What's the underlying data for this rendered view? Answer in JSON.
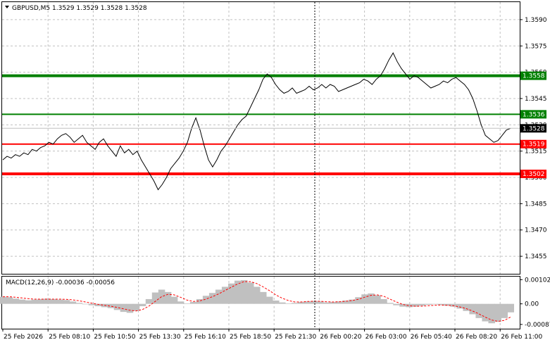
{
  "header": {
    "title": "GBPUSD,M5  1.3529 1.3529 1.3528 1.3528",
    "menu_icon": "triangle-down-icon"
  },
  "macd": {
    "label": "MACD(12,26,9) -0.00036 -0.00056",
    "hist_color": "#c0c0c0",
    "signal_color": "#ff0000"
  },
  "colors": {
    "support": "#ff0000",
    "resistance": "#008000",
    "price_line": "#000000",
    "grid": "#c0c0c0",
    "current_price_bg": "#000000",
    "vertical_marker": "#000000"
  },
  "chart_data": [
    {
      "type": "line",
      "name": "price",
      "title": "GBPUSD,M5",
      "ylim": [
        1.3445,
        1.36
      ],
      "y_ticks": [
        "1.3590",
        "1.3575",
        "1.3560",
        "1.3545",
        "1.3530",
        "1.3515",
        "1.3500",
        "1.3485",
        "1.3470",
        "1.3455"
      ],
      "x_ticks": [
        "25 Feb 2026",
        "25 Feb 08:10",
        "25 Feb 10:50",
        "25 Feb 13:30",
        "25 Feb 16:10",
        "25 Feb 18:50",
        "25 Feb 21:30",
        "26 Feb 00:20",
        "26 Feb 03:00",
        "26 Feb 05:40",
        "26 Feb 08:20",
        "26 Feb 11:00"
      ],
      "levels": [
        {
          "label": "1.3558",
          "value": 1.3558,
          "kind": "resistance",
          "thick": true
        },
        {
          "label": "1.3536",
          "value": 1.3536,
          "kind": "resistance",
          "thick": false
        },
        {
          "label": "1.3519",
          "value": 1.3519,
          "kind": "support",
          "thick": false
        },
        {
          "label": "1.3502",
          "value": 1.3502,
          "kind": "support",
          "thick": true
        }
      ],
      "current_price": {
        "label": "1.3528",
        "value": 1.3528
      },
      "grid": true,
      "series": [
        {
          "values": [
            1.351,
            1.3512,
            1.3511,
            1.3513,
            1.3512,
            1.3514,
            1.3513,
            1.3516,
            1.3515,
            1.3517,
            1.3518,
            1.352,
            1.3519,
            1.3522,
            1.3524,
            1.3525,
            1.3523,
            1.352,
            1.3522,
            1.3524,
            1.352,
            1.3518,
            1.3516,
            1.352,
            1.3522,
            1.3518,
            1.3515,
            1.3512,
            1.3518,
            1.3514,
            1.3516,
            1.3513,
            1.3515,
            1.351,
            1.3506,
            1.3502,
            1.3498,
            1.3493,
            1.3496,
            1.35,
            1.3505,
            1.3508,
            1.3511,
            1.3515,
            1.352,
            1.3528,
            1.3534,
            1.3527,
            1.3518,
            1.351,
            1.3506,
            1.351,
            1.3515,
            1.3518,
            1.3522,
            1.3526,
            1.353,
            1.3533,
            1.3535,
            1.354,
            1.3545,
            1.355,
            1.3556,
            1.3559,
            1.3557,
            1.3553,
            1.355,
            1.3548,
            1.3549,
            1.3551,
            1.3548,
            1.3549,
            1.355,
            1.3552,
            1.355,
            1.3551,
            1.3553,
            1.3551,
            1.3553,
            1.3552,
            1.3549,
            1.355,
            1.3551,
            1.3552,
            1.3553,
            1.3554,
            1.3556,
            1.3555,
            1.3553,
            1.3556,
            1.3558,
            1.3562,
            1.3567,
            1.3571,
            1.3566,
            1.3562,
            1.3559,
            1.3556,
            1.3558,
            1.3557,
            1.3555,
            1.3553,
            1.3551,
            1.3552,
            1.3553,
            1.3555,
            1.3554,
            1.3556,
            1.3557,
            1.3555,
            1.3553,
            1.355,
            1.3545,
            1.3538,
            1.353,
            1.3524,
            1.3522,
            1.352,
            1.3521,
            1.3524,
            1.3527,
            1.3528
          ]
        }
      ]
    },
    {
      "type": "bar",
      "name": "MACD",
      "title": "MACD(12,26,9) -0.00036 -0.00056",
      "ylim": [
        -0.00105,
        0.00115
      ],
      "y_ticks": [
        "0.00102",
        "0.00",
        "-0.00087"
      ],
      "series": [
        {
          "name": "MACD",
          "values": [
            0.0003,
            0.00028,
            0.00022,
            0.00018,
            0.00015,
            0.00018,
            0.0002,
            0.00022,
            0.0002,
            0.00018,
            0.00016,
            0.0001,
            4e-05,
            -2e-05,
            -6e-05,
            -0.0001,
            -0.00014,
            -0.00018,
            -0.00026,
            -0.00034,
            -0.00038,
            -0.0003,
            -0.0001,
            0.0002,
            0.00048,
            0.0006,
            0.0005,
            0.0003,
            0.0001,
            2e-05,
            8e-05,
            0.0002,
            0.00034,
            0.00046,
            0.0006,
            0.00072,
            0.00086,
            0.00098,
            0.001,
            0.0009,
            0.00072,
            0.0005,
            0.0003,
            0.00014,
            6e-05,
            2e-05,
            4e-05,
            8e-05,
            0.0001,
            0.00012,
            0.0001,
            6e-05,
            8e-05,
            0.0001,
            0.00014,
            0.00018,
            0.00028,
            0.0004,
            0.00044,
            0.00036,
            0.0002,
            4e-05,
            -6e-05,
            -0.00012,
            -0.00014,
            -0.00012,
            -8e-05,
            -4e-05,
            -2e-05,
            -4e-05,
            -8e-05,
            -0.00012,
            -0.0002,
            -0.0003,
            -0.00044,
            -0.0006,
            -0.00074,
            -0.00082,
            -0.00076,
            -0.0006,
            -0.00036
          ]
        },
        {
          "name": "Signal",
          "values": [
            0.0003,
            0.0003,
            0.00028,
            0.00025,
            0.00022,
            0.0002,
            0.0002,
            0.0002,
            0.0002,
            0.0002,
            0.00019,
            0.00017,
            0.00013,
            8e-05,
            3e-05,
            -2e-05,
            -6e-05,
            -0.0001,
            -0.00015,
            -0.00021,
            -0.00027,
            -0.0003,
            -0.00024,
            -0.0001,
            0.0001,
            0.0003,
            0.0004,
            0.00038,
            0.00028,
            0.00016,
            0.0001,
            0.00012,
            0.0002,
            0.0003,
            0.00042,
            0.00056,
            0.0007,
            0.00084,
            0.00094,
            0.00094,
            0.00086,
            0.00072,
            0.00056,
            0.00038,
            0.00024,
            0.00014,
            8e-05,
            8e-05,
            0.0001,
            0.00011,
            0.00011,
            9e-05,
            8e-05,
            9e-05,
            0.00011,
            0.00014,
            0.00019,
            0.00028,
            0.00036,
            0.00038,
            0.00032,
            0.0002,
            8e-05,
            -2e-05,
            -8e-05,
            -0.0001,
            -0.0001,
            -8e-05,
            -6e-05,
            -5e-05,
            -6e-05,
            -8e-05,
            -0.00013,
            -0.0002,
            -0.0003,
            -0.00042,
            -0.00056,
            -0.00068,
            -0.00074,
            -0.0007,
            -0.00056
          ]
        }
      ]
    }
  ]
}
